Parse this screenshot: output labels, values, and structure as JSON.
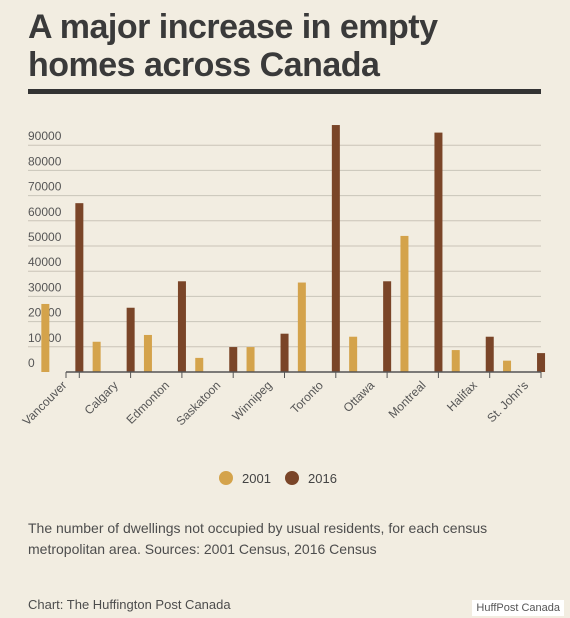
{
  "title": "A major increase in empty homes across Canada",
  "chart_data": {
    "type": "bar",
    "categories": [
      "Vancouver",
      "Calgary",
      "Edmonton",
      "Saskatoon",
      "Winnipeg",
      "Toronto",
      "Ottawa",
      "Montreal",
      "Halifax",
      "St. John's"
    ],
    "series": [
      {
        "name": "2001",
        "values": [
          27000,
          12000,
          14700,
          5600,
          9900,
          35500,
          14000,
          54000,
          8700,
          4500
        ],
        "color": "#d4a34b"
      },
      {
        "name": "2016",
        "values": [
          67000,
          25500,
          36000,
          9900,
          15200,
          98000,
          36000,
          95000,
          14000,
          7500
        ],
        "color": "#7a4528"
      }
    ],
    "yticks": [
      0,
      10000,
      20000,
      30000,
      40000,
      50000,
      60000,
      70000,
      80000,
      90000
    ],
    "ylim": [
      0,
      100000
    ],
    "grid": true,
    "legend": "bottom-center"
  },
  "caption": "The number of dwellings not occupied by usual residents, for each census metropolitan area. Sources: 2001 Census, 2016 Census",
  "credit": "Chart: The Huffington Post Canada",
  "watermark": "HuffPost Canada"
}
